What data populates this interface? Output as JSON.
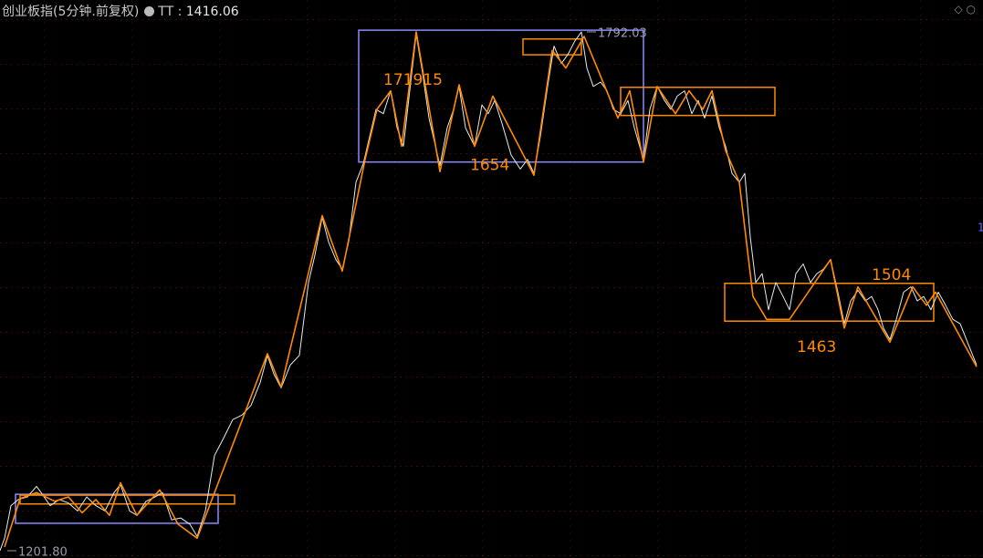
{
  "chart_data": {
    "type": "line",
    "title": "创业板指(5分钟.前复权)",
    "indicator": {
      "name": "TT",
      "separator": ":",
      "value": 1416.06
    },
    "xlim": [
      0,
      1072
    ],
    "ylim": [
      1193.5,
      1828.35
    ],
    "series": [
      {
        "color": "#e2ecee",
        "x": [
          0,
          5,
          12,
          20,
          30,
          40,
          45,
          55,
          65,
          75,
          85,
          95,
          105,
          115,
          125,
          132,
          142,
          150,
          160,
          170,
          178,
          188,
          198,
          208,
          216,
          225,
          235,
          245,
          255,
          265,
          275,
          285,
          293,
          300,
          308,
          318,
          328,
          338,
          345,
          353,
          360,
          368,
          375,
          382,
          390,
          398,
          405,
          412,
          420,
          428,
          435,
          442,
          450,
          456,
          463,
          470,
          482,
          490,
          497,
          503,
          510,
          520,
          528,
          535,
          542,
          550,
          560,
          570,
          578,
          585,
          592,
          600,
          607,
          615,
          622,
          630,
          637,
          643,
          650,
          658,
          665,
          672,
          680,
          688,
          695,
          705,
          712,
          720,
          728,
          735,
          742,
          750,
          758,
          765,
          772,
          780,
          788,
          795,
          802,
          810,
          816,
          822,
          828,
          835,
          842,
          850,
          858,
          865,
          872,
          880,
          888,
          895,
          902,
          910,
          918,
          925,
          932,
          940,
          948,
          955,
          962,
          968,
          975,
          982,
          990,
          998,
          1005,
          1012,
          1020,
          1028,
          1036,
          1044,
          1052,
          1060,
          1070
        ],
        "values": [
          1201.8,
          1216,
          1253,
          1260,
          1263,
          1275,
          1268,
          1253,
          1260,
          1256,
          1247,
          1263,
          1253,
          1247,
          1268,
          1277,
          1247,
          1242,
          1258,
          1263,
          1268,
          1237,
          1239,
          1232,
          1218,
          1247,
          1310,
          1330,
          1351,
          1356,
          1367,
          1393,
          1424,
          1403,
          1387,
          1413,
          1424,
          1507,
          1538,
          1581,
          1553,
          1533,
          1522,
          1553,
          1621,
          1642,
          1673,
          1704,
          1699,
          1725,
          1683,
          1662,
          1735,
          1789,
          1745,
          1694,
          1640,
          1683,
          1704,
          1730,
          1683,
          1662,
          1709,
          1699,
          1714,
          1688,
          1652,
          1636,
          1647,
          1631,
          1673,
          1730,
          1776,
          1756,
          1766,
          1782,
          1792.03,
          1751,
          1730,
          1735,
          1725,
          1704,
          1699,
          1714,
          1683,
          1647,
          1704,
          1730,
          1714,
          1704,
          1719,
          1725,
          1699,
          1714,
          1694,
          1719,
          1683,
          1662,
          1631,
          1621,
          1631,
          1559,
          1507,
          1517,
          1476,
          1507,
          1491,
          1476,
          1517,
          1528,
          1507,
          1517,
          1522,
          1533,
          1496,
          1460,
          1486,
          1498,
          1486,
          1491,
          1476,
          1455,
          1442,
          1465,
          1496,
          1502,
          1486,
          1491,
          1476,
          1496,
          1481,
          1465,
          1460,
          1439,
          1413
        ]
      },
      {
        "color": "#ff8a00",
        "x": [
          5,
          22,
          40,
          60,
          75,
          90,
          105,
          120,
          132,
          150,
          175,
          195,
          216,
          293,
          308,
          353,
          375,
          400,
          413,
          428,
          440,
          456,
          482,
          503,
          520,
          540,
          585,
          605,
          620,
          640,
          677,
          690,
          705,
          720,
          740,
          755,
          770,
          780,
          795,
          810,
          825,
          840,
          865,
          910,
          925,
          940,
          975,
          1000,
          1015,
          1025,
          1070
        ],
        "values": [
          1206,
          1261,
          1268,
          1258,
          1263,
          1245,
          1260,
          1242,
          1279,
          1242,
          1271,
          1232,
          1216,
          1426,
          1388,
          1583,
          1520,
          1647,
          1704,
          1725,
          1662,
          1792,
          1633,
          1732,
          1662,
          1719,
          1629,
          1771,
          1751,
          1787,
          1694,
          1725,
          1644,
          1730,
          1699,
          1725,
          1704,
          1725,
          1657,
          1621,
          1491,
          1465,
          1465,
          1533,
          1455,
          1502,
          1439,
          1502,
          1481,
          1496,
          1411
        ]
      }
    ],
    "boxes": [
      {
        "color": "#8a8aff",
        "x": [
          17,
          239
        ],
        "y": [
          1233,
          1266
        ]
      },
      {
        "color": "#ff8a00",
        "x": [
          22,
          257
        ],
        "y": [
          1255,
          1265
        ]
      },
      {
        "color": "#8a8aff",
        "x": [
          393,
          705
        ],
        "y": [
          1644,
          1794
        ]
      },
      {
        "color": "#ff8a00",
        "x": [
          573,
          637
        ],
        "y": [
          1766,
          1784
        ]
      },
      {
        "color": "#ff8a00",
        "x": [
          680,
          849
        ],
        "y": [
          1697,
          1729
        ]
      },
      {
        "color": "#ff8a00",
        "x": [
          794,
          1023
        ],
        "y": [
          1463,
          1506
        ]
      }
    ],
    "annotations": [
      {
        "label": "171915",
        "x": 420,
        "y": 1737
      },
      {
        "label": "1654",
        "x": 515,
        "y": 1640
      },
      {
        "label": "1463",
        "x": 873,
        "y": 1433
      },
      {
        "label": "1504",
        "x": 955,
        "y": 1515
      }
    ],
    "price_marks": [
      {
        "value": 1792.03,
        "label": "1792.03",
        "x": 655
      },
      {
        "value": 1201.8,
        "label": "1201.80",
        "x": 20
      }
    ],
    "edge_label": "1"
  }
}
